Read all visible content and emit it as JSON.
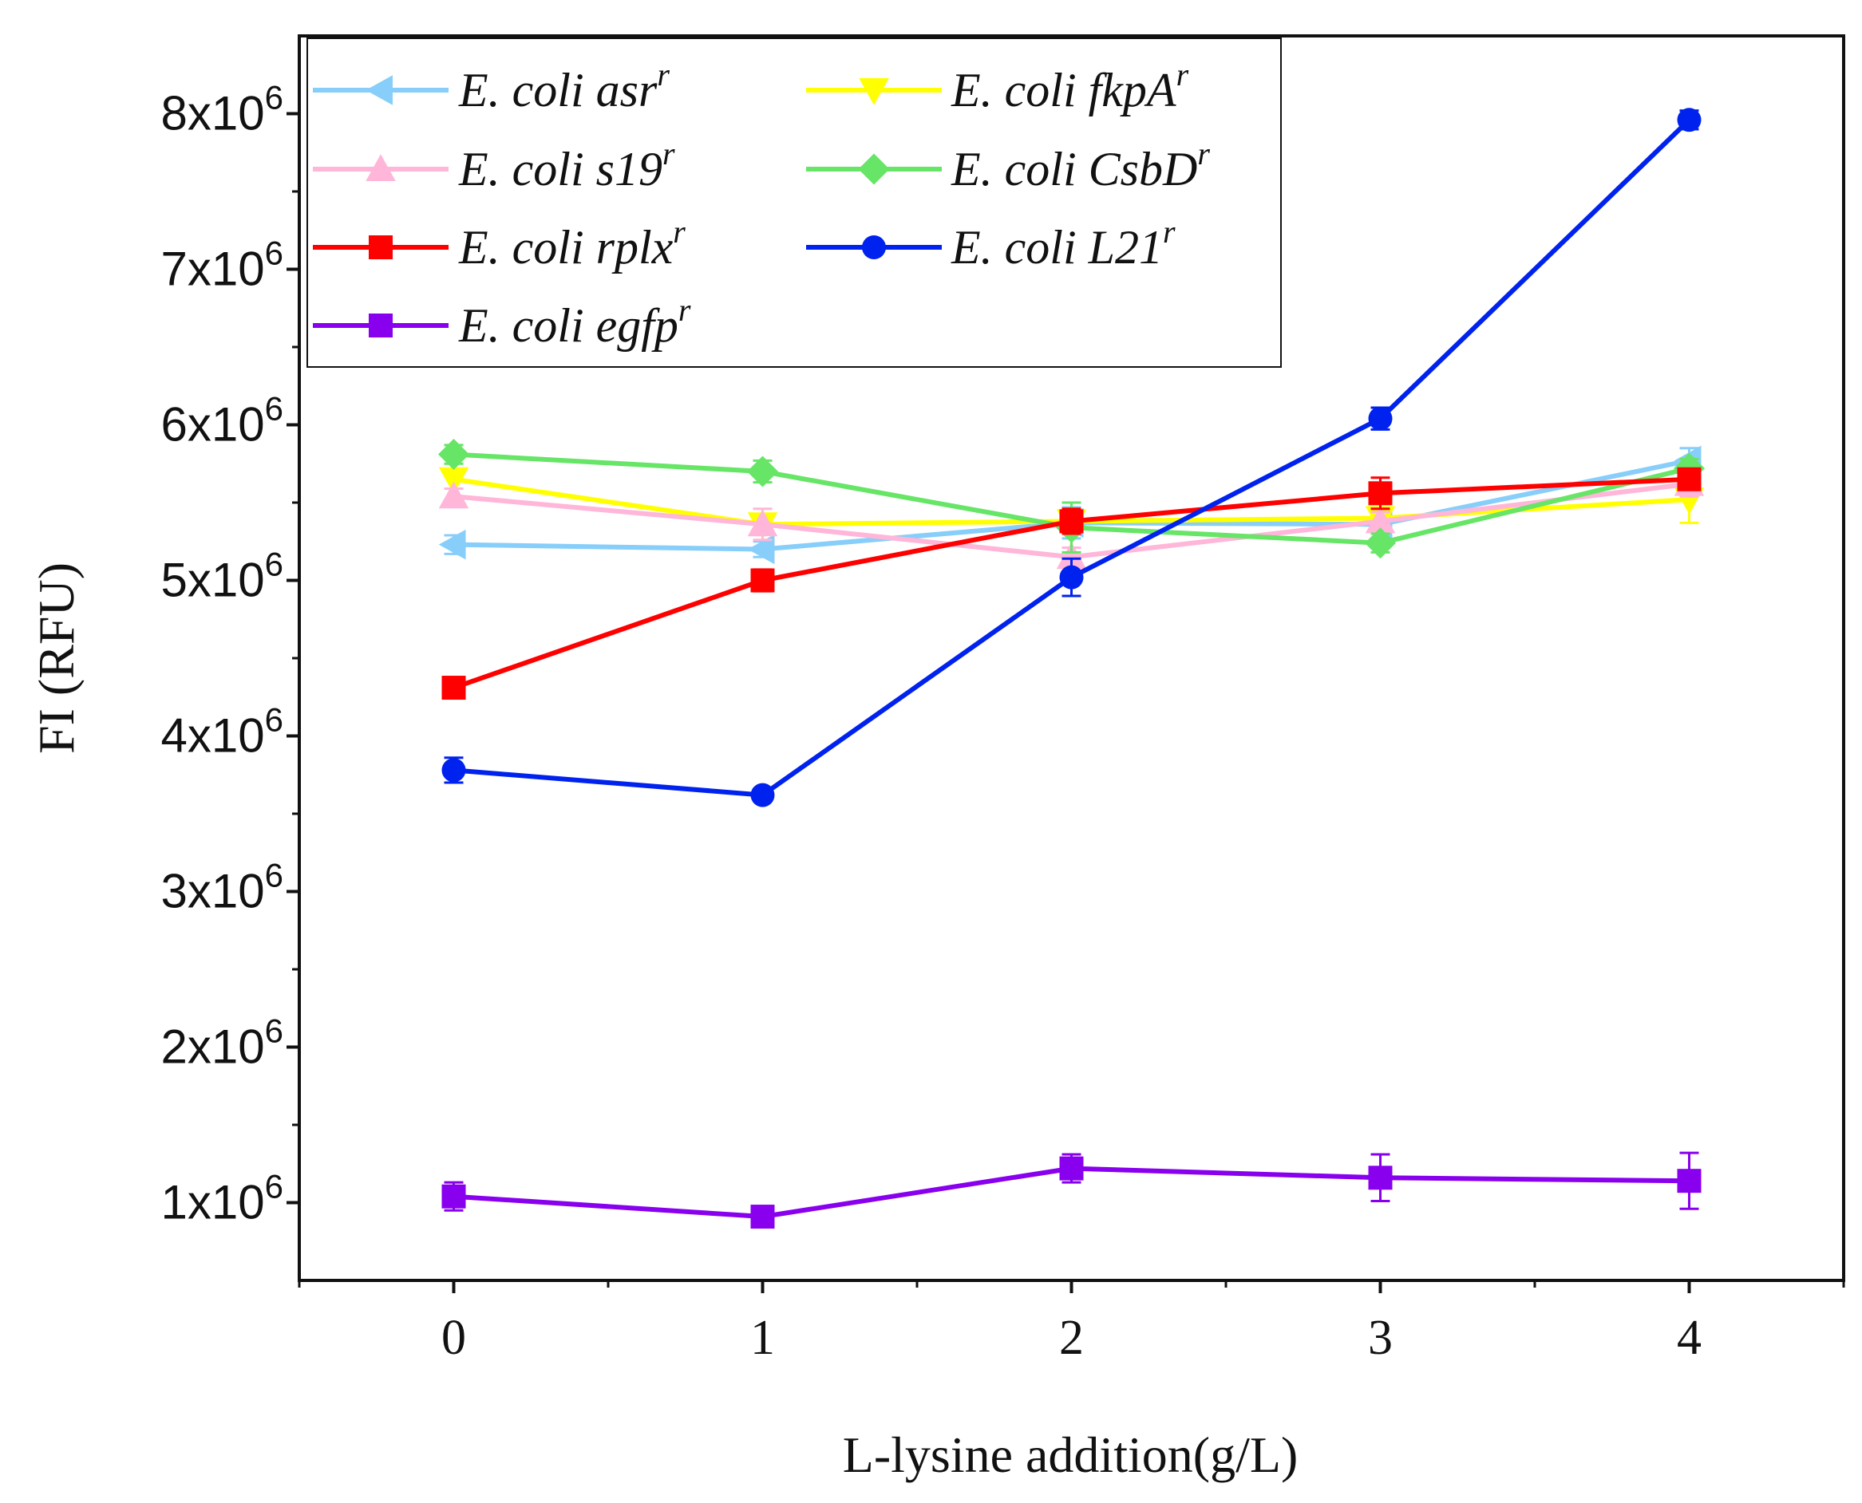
{
  "chart_data": {
    "type": "line",
    "title": "",
    "xlabel": "L-lysine addition(g/L)",
    "ylabel": "FI (RFU)",
    "x": [
      0,
      1,
      2,
      3,
      4
    ],
    "x_tick_labels": [
      "0",
      "1",
      "2",
      "3",
      "4"
    ],
    "xlim": [
      -0.5,
      4.5
    ],
    "ylim": [
      500000,
      8500000
    ],
    "y_ticks": [
      1000000,
      2000000,
      3000000,
      4000000,
      5000000,
      6000000,
      7000000,
      8000000
    ],
    "y_tick_labels": [
      "1x10",
      "2x10",
      "3x10",
      "4x10",
      "5x10",
      "6x10",
      "7x10",
      "8x10"
    ],
    "y_tick_exponent": "6",
    "grid": false,
    "legend_position": "top-left",
    "series": [
      {
        "name": "E. coli asr",
        "superscript": "r",
        "color": "#87CEFA",
        "marker": "triangle-left",
        "values": [
          5230000,
          5200000,
          5370000,
          5360000,
          5770000
        ],
        "errors": [
          60000,
          50000,
          100000,
          60000,
          80000
        ]
      },
      {
        "name": "E. coli fkpA",
        "superscript": "r",
        "color": "#FFFF00",
        "marker": "triangle-down",
        "values": [
          5650000,
          5360000,
          5380000,
          5400000,
          5520000
        ],
        "errors": [
          60000,
          60000,
          60000,
          60000,
          150000
        ]
      },
      {
        "name": "E. coli s19",
        "superscript": "r",
        "color": "#FFB6D9",
        "marker": "triangle-up",
        "values": [
          5540000,
          5360000,
          5150000,
          5380000,
          5620000
        ],
        "errors": [
          50000,
          100000,
          60000,
          60000,
          80000
        ]
      },
      {
        "name": "E. coli CsbD",
        "superscript": "r",
        "color": "#66E566",
        "marker": "diamond",
        "values": [
          5810000,
          5700000,
          5340000,
          5240000,
          5720000
        ],
        "errors": [
          60000,
          70000,
          160000,
          60000,
          60000
        ]
      },
      {
        "name": "E. coli rplx",
        "superscript": "r",
        "color": "#FF0000",
        "marker": "square",
        "values": [
          4310000,
          5000000,
          5380000,
          5560000,
          5650000
        ],
        "errors": [
          60000,
          70000,
          80000,
          100000,
          60000
        ]
      },
      {
        "name": "E. coli L21",
        "superscript": "r",
        "color": "#0022EE",
        "marker": "circle",
        "values": [
          3780000,
          3620000,
          5020000,
          6040000,
          7960000
        ],
        "errors": [
          80000,
          40000,
          120000,
          70000,
          60000
        ]
      },
      {
        "name": "E. coli egfp",
        "superscript": "r",
        "color": "#8800EE",
        "marker": "square",
        "values": [
          1040000,
          910000,
          1220000,
          1160000,
          1140000
        ],
        "errors": [
          90000,
          40000,
          90000,
          150000,
          180000
        ]
      }
    ]
  }
}
